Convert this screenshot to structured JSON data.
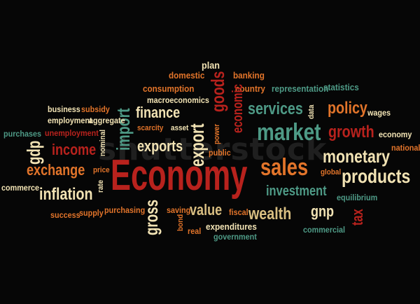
{
  "palette": {
    "cream": "#f2e3b4",
    "red": "#b8221d",
    "orange": "#e2742a",
    "teal": "#4e9a86",
    "tan": "#d9bf82",
    "bg": "#060606"
  },
  "watermark": "shutterstock",
  "words": [
    {
      "t": "plan",
      "c": "cream"
    },
    {
      "t": "domestic",
      "c": "orange"
    },
    {
      "t": "banking",
      "c": "orange"
    },
    {
      "t": "consumption",
      "c": "orange"
    },
    {
      "t": "goods",
      "c": "red"
    },
    {
      "t": "country",
      "c": "orange"
    },
    {
      "t": "representation",
      "c": "teal"
    },
    {
      "t": "statistics",
      "c": "teal"
    },
    {
      "t": "wages",
      "c": "cream"
    },
    {
      "t": "macroeconomics",
      "c": "cream"
    },
    {
      "t": "business",
      "c": "cream"
    },
    {
      "t": "subsidy",
      "c": "orange"
    },
    {
      "t": "import",
      "c": "teal"
    },
    {
      "t": "finance",
      "c": "cream"
    },
    {
      "t": "economic",
      "c": "red"
    },
    {
      "t": "services",
      "c": "teal"
    },
    {
      "t": "data",
      "c": "cream"
    },
    {
      "t": "policy",
      "c": "orange"
    },
    {
      "t": "employment",
      "c": "cream"
    },
    {
      "t": "aggregate",
      "c": "cream"
    },
    {
      "t": "scarcity",
      "c": "orange"
    },
    {
      "t": "asset",
      "c": "cream"
    },
    {
      "t": "export",
      "c": "cream"
    },
    {
      "t": "power",
      "c": "orange"
    },
    {
      "t": "market",
      "c": "teal"
    },
    {
      "t": "growth",
      "c": "red"
    },
    {
      "t": "economy",
      "c": "cream"
    },
    {
      "t": "purchases",
      "c": "teal"
    },
    {
      "t": "unemployment",
      "c": "red"
    },
    {
      "t": "nominal",
      "c": "cream"
    },
    {
      "t": "national",
      "c": "orange"
    },
    {
      "t": "gdp",
      "c": "cream"
    },
    {
      "t": "income",
      "c": "red"
    },
    {
      "t": "exports",
      "c": "cream"
    },
    {
      "t": "public",
      "c": "orange"
    },
    {
      "t": "monetary",
      "c": "cream"
    },
    {
      "t": "exchange",
      "c": "orange"
    },
    {
      "t": "price",
      "c": "orange"
    },
    {
      "t": "Economy",
      "c": "red"
    },
    {
      "t": "sales",
      "c": "orange"
    },
    {
      "t": "global",
      "c": "orange"
    },
    {
      "t": "products",
      "c": "cream"
    },
    {
      "t": "commerce",
      "c": "cream"
    },
    {
      "t": "rate",
      "c": "cream"
    },
    {
      "t": "inflation",
      "c": "cream"
    },
    {
      "t": "investment",
      "c": "teal"
    },
    {
      "t": "equilibrium",
      "c": "teal"
    },
    {
      "t": "success",
      "c": "orange"
    },
    {
      "t": "supply",
      "c": "orange"
    },
    {
      "t": "purchasing",
      "c": "orange"
    },
    {
      "t": "gross",
      "c": "cream"
    },
    {
      "t": "saving",
      "c": "orange"
    },
    {
      "t": "value",
      "c": "tan"
    },
    {
      "t": "fiscal",
      "c": "orange"
    },
    {
      "t": "wealth",
      "c": "tan"
    },
    {
      "t": "gnp",
      "c": "cream"
    },
    {
      "t": "tax",
      "c": "red"
    },
    {
      "t": "bond",
      "c": "orange"
    },
    {
      "t": "real",
      "c": "orange"
    },
    {
      "t": "expenditures",
      "c": "cream"
    },
    {
      "t": "commercial",
      "c": "teal"
    },
    {
      "t": "government",
      "c": "teal"
    }
  ]
}
